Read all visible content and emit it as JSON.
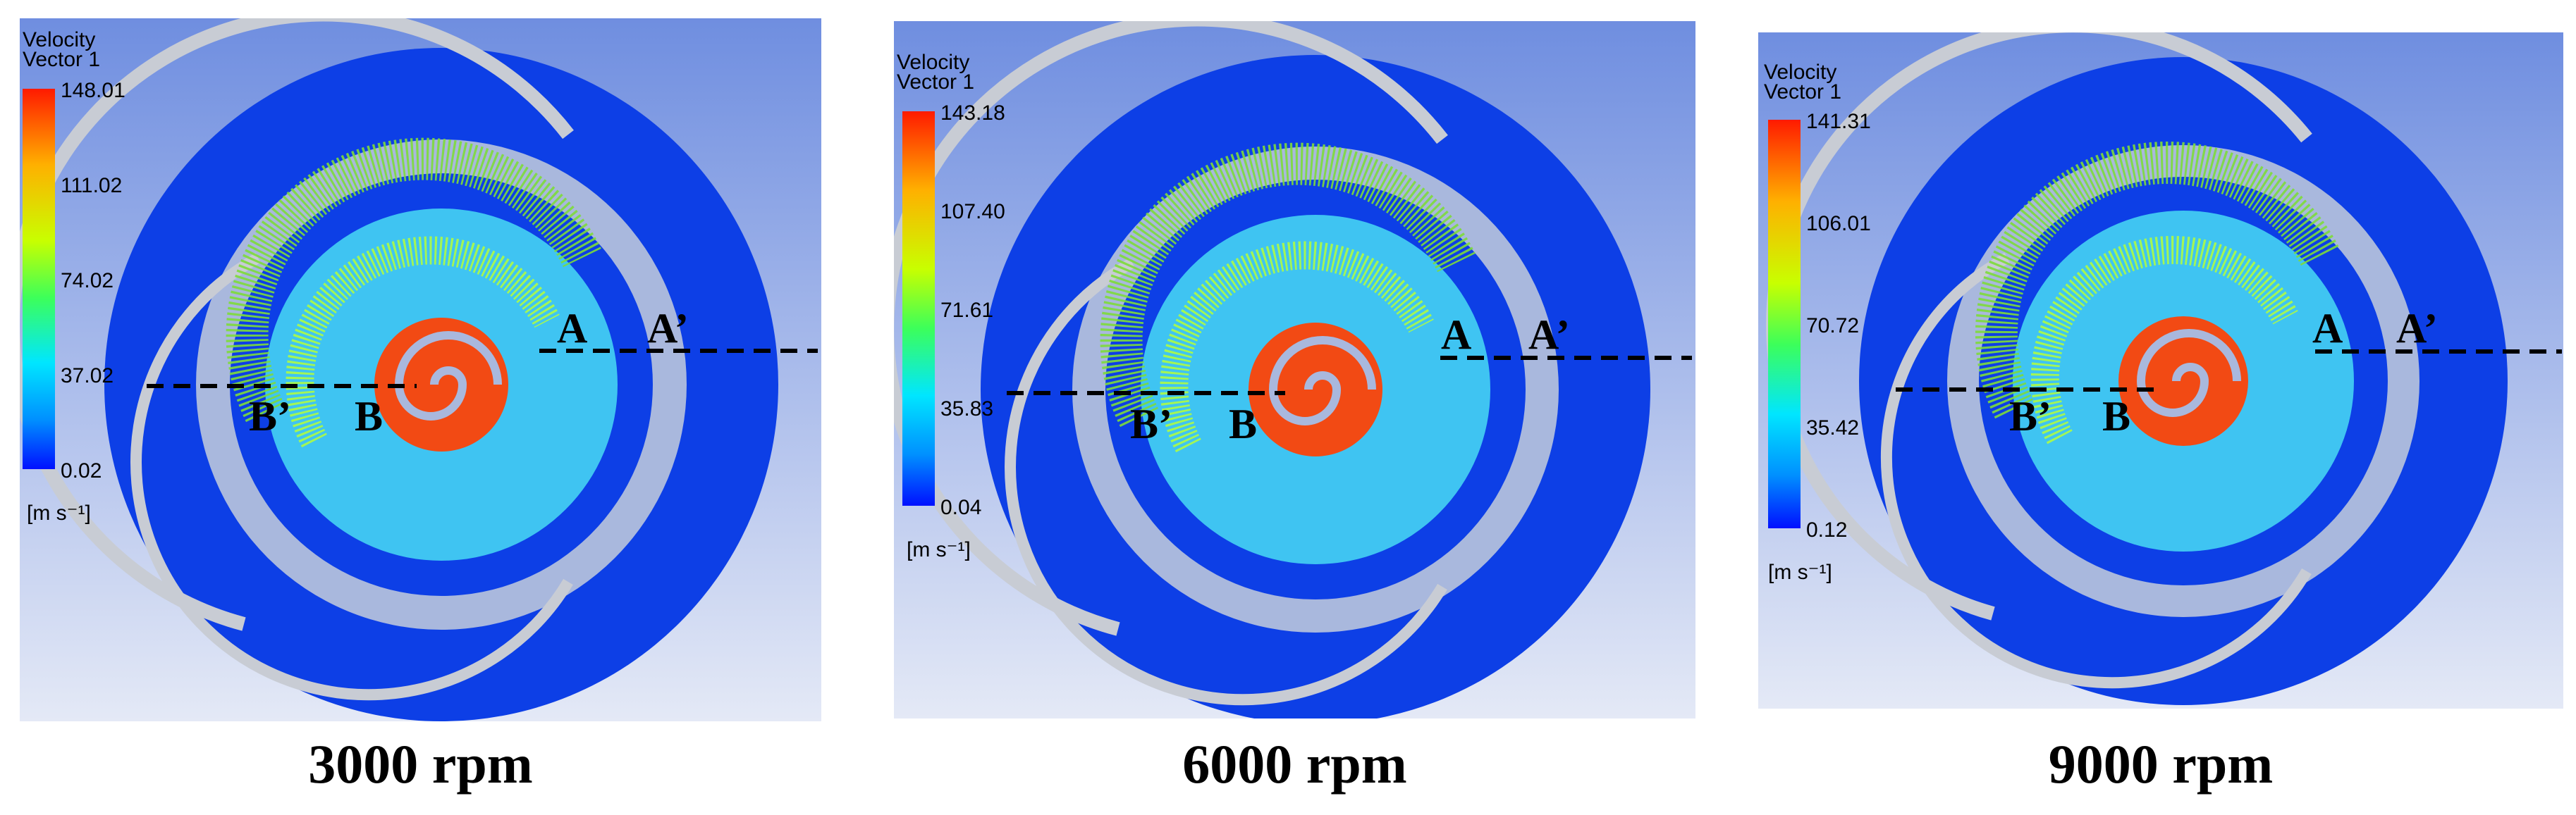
{
  "figure": {
    "panels": [
      {
        "caption": "3000 rpm",
        "legend": {
          "title_line1": "Velocity",
          "title_line2": "Vector 1",
          "ticks": [
            "148.01",
            "111.02",
            "74.02",
            "37.02",
            "0.02"
          ],
          "unit": "[m s⁻¹]"
        },
        "labels": {
          "a": "A",
          "a_prime": "A’",
          "b": "B",
          "b_prime": "B’"
        }
      },
      {
        "caption": "6000 rpm",
        "legend": {
          "title_line1": "Velocity",
          "title_line2": "Vector 1",
          "ticks": [
            "143.18",
            "107.40",
            "71.61",
            "35.83",
            "0.04"
          ],
          "unit": "[m s⁻¹]"
        },
        "labels": {
          "a": "A",
          "a_prime": "A’",
          "b": "B",
          "b_prime": "B’"
        }
      },
      {
        "caption": "9000 rpm",
        "legend": {
          "title_line1": "Velocity",
          "title_line2": "Vector 1",
          "ticks": [
            "141.31",
            "106.01",
            "70.72",
            "35.42",
            "0.12"
          ],
          "unit": "[m s⁻¹]"
        },
        "labels": {
          "a": "A",
          "a_prime": "A’",
          "b": "B",
          "b_prime": "B’"
        }
      }
    ],
    "colors": {
      "background_top": "#6f8ee0",
      "background_bottom": "#e4e9f6",
      "casing": "#0d3fe6",
      "gap": "#a9b8dd",
      "fluid": "#3fc4f2",
      "rotor": "#f24a14",
      "scroll_wall": "#c8ccd4"
    }
  }
}
